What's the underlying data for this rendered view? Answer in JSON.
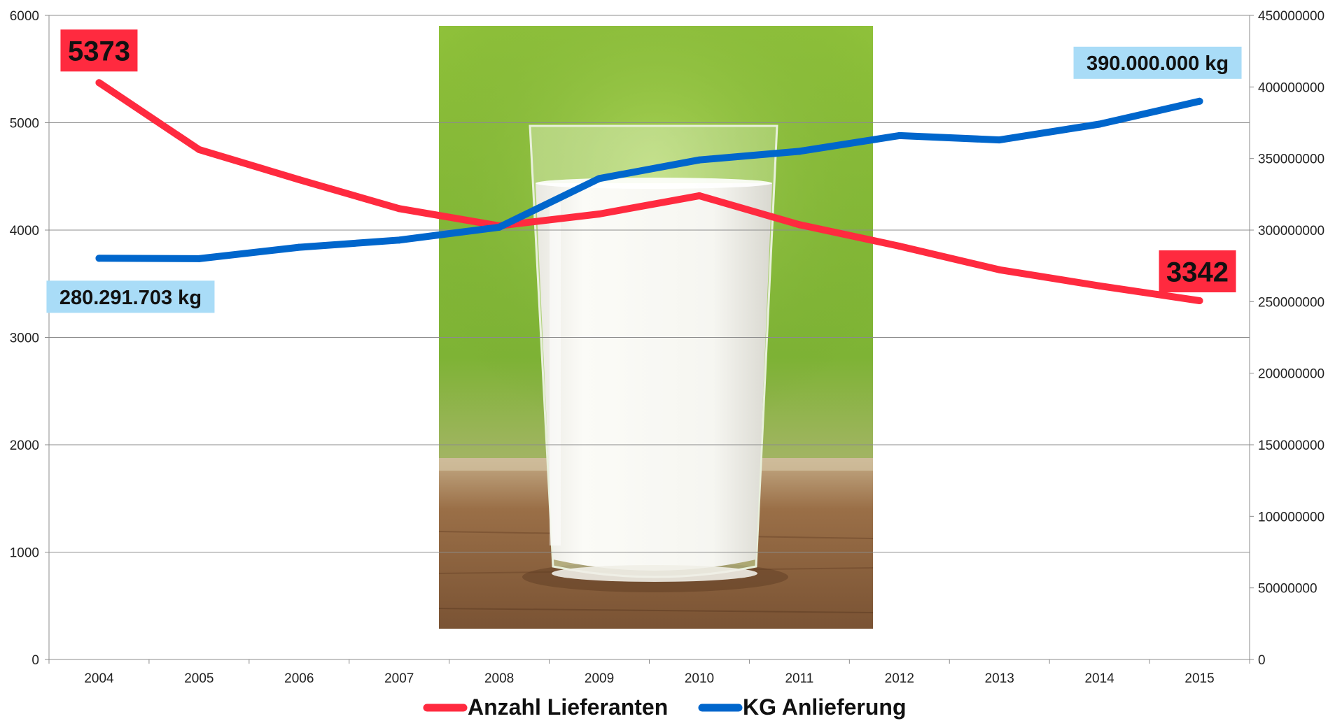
{
  "chart_data": {
    "type": "line",
    "categories": [
      "2004",
      "2005",
      "2006",
      "2007",
      "2008",
      "2009",
      "2010",
      "2011",
      "2012",
      "2013",
      "2014",
      "2015"
    ],
    "series": [
      {
        "name": "Anzahl Lieferanten",
        "axis": "left",
        "color": "#ff2a3f",
        "values": [
          5373,
          4750,
          4470,
          4200,
          4040,
          4150,
          4320,
          4050,
          3850,
          3630,
          3480,
          3342
        ]
      },
      {
        "name": "KG Anlieferung",
        "axis": "right",
        "color": "#0066cc",
        "values": [
          280291703,
          280000000,
          288000000,
          293000000,
          302000000,
          336000000,
          349000000,
          355000000,
          366000000,
          363000000,
          374000000,
          390000000
        ]
      }
    ],
    "left_axis": {
      "ylim": [
        0,
        6000
      ],
      "ticks": [
        "0",
        "1000",
        "2000",
        "3000",
        "4000",
        "5000",
        "6000"
      ]
    },
    "right_axis": {
      "ylim": [
        0,
        450000000
      ],
      "ticks": [
        "0",
        "50000000",
        "100000000",
        "150000000",
        "200000000",
        "250000000",
        "300000000",
        "350000000",
        "400000000",
        "450000000"
      ]
    },
    "grid": true,
    "legend_position": "bottom",
    "callouts": [
      {
        "text": "5373",
        "series": 0,
        "point": 0,
        "bg": "#ff2a3f",
        "color": "#111111"
      },
      {
        "text": "3342",
        "series": 0,
        "point": 11,
        "bg": "#ff2a3f",
        "color": "#111111"
      },
      {
        "text": "280.291.703 kg",
        "series": 1,
        "point": 0,
        "bg": "#a9dcf7",
        "color": "#111111"
      },
      {
        "text": "390.000.000 kg",
        "series": 1,
        "point": 11,
        "bg": "#a9dcf7",
        "color": "#111111"
      }
    ],
    "background_image": "glass of milk on wooden table with green background"
  }
}
